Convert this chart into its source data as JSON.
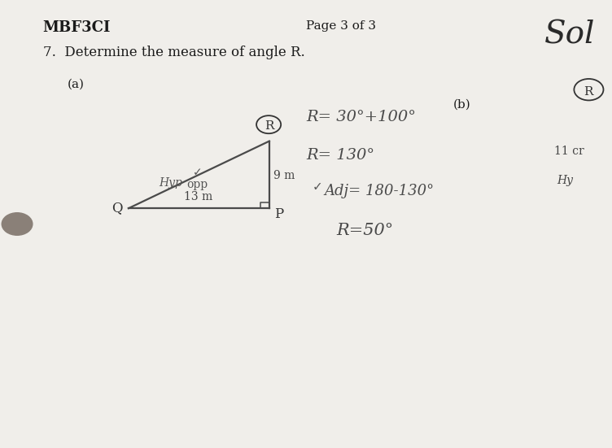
{
  "page_color": "#f0eeea",
  "title": "MBF3CI",
  "page_label": "Page 3 of 3",
  "question": "7.  Determine the measure of angle R.",
  "part_a": "(a)",
  "part_b": "(b)",
  "label_13m": "13 m",
  "label_9m": "9 m",
  "label_opp": "opp",
  "label_hyp": "Hyp",
  "label_Q": "Q",
  "label_P": "P",
  "label_R_circle": "R",
  "hand1": "R= 30°+100°",
  "hand2": "R= 130°",
  "hand3": "Adj= 180-130°",
  "hand4": "R=50°",
  "right_R": "R",
  "right_11cm": "11 cr",
  "right_Hy": "Hy",
  "sol_text": "Sol"
}
